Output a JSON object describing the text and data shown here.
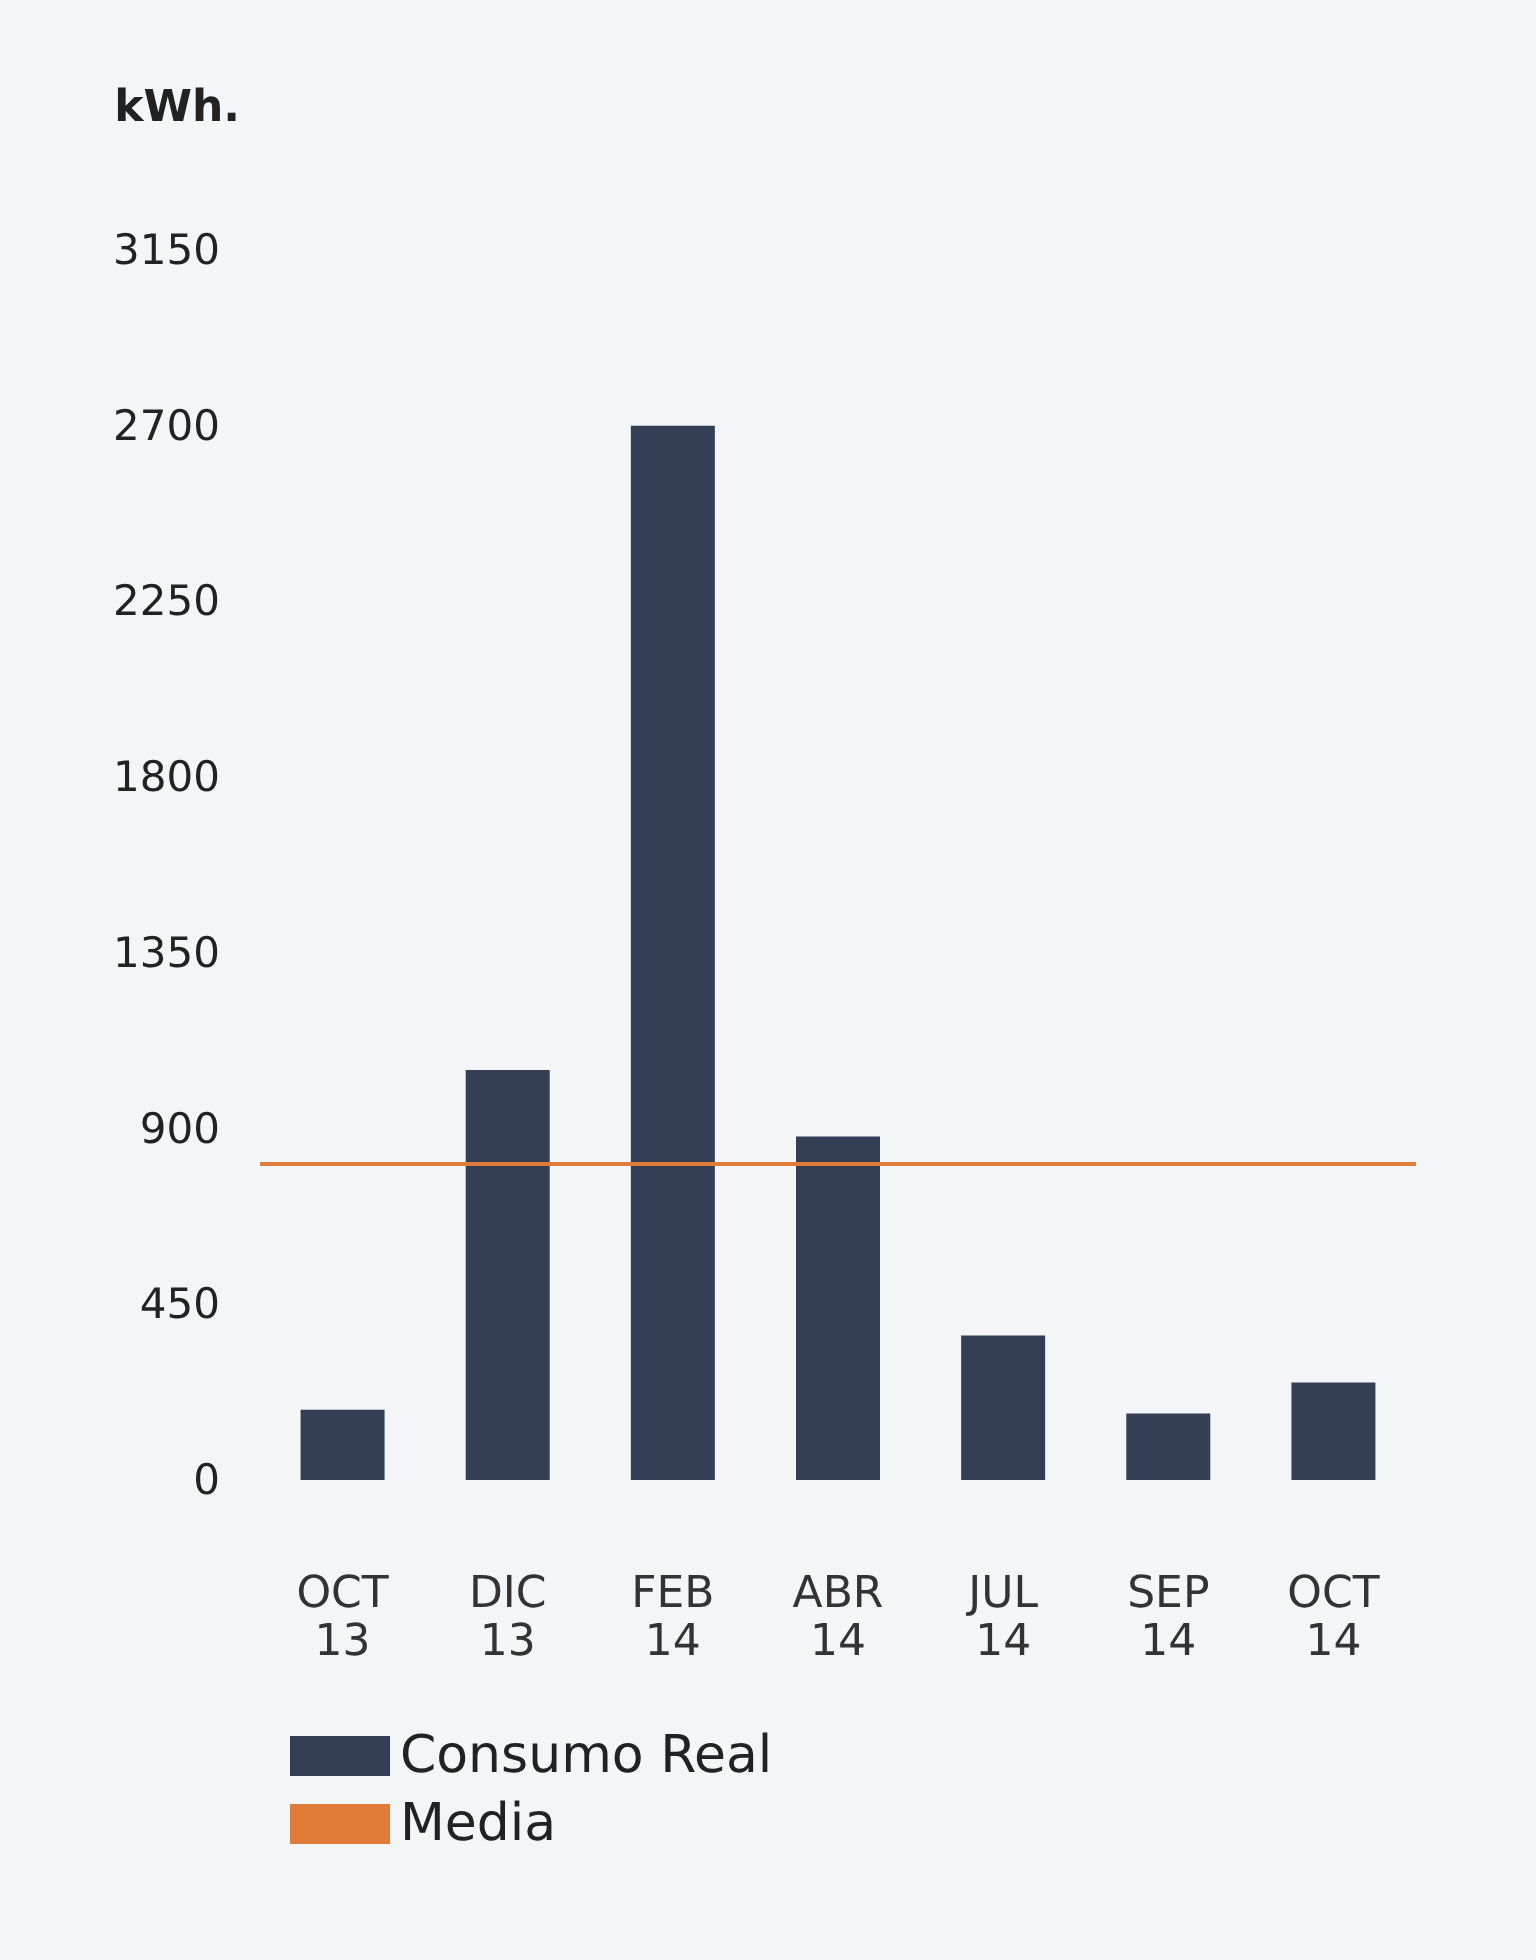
{
  "chart_data": {
    "type": "bar",
    "ylabel": "kWh.",
    "categories": [
      "OCT\n13",
      "DIC\n13",
      "FEB\n14",
      "ABR\n14",
      "JUL\n14",
      "SEP\n14",
      "OCT\n14"
    ],
    "series": [
      {
        "name": "Consumo Real",
        "color": "#323f55",
        "values": [
          180,
          1050,
          2700,
          880,
          370,
          170,
          250
        ]
      }
    ],
    "ylim": [
      0,
      3150
    ],
    "yticks": [
      0,
      450,
      900,
      1350,
      1800,
      2250,
      2700,
      3150
    ],
    "ref_lines": [
      {
        "axis": "y",
        "value": 810,
        "label": "Media",
        "color": "#e07b39",
        "line_style": "solid"
      }
    ],
    "grid": false,
    "legend": "bottom"
  }
}
